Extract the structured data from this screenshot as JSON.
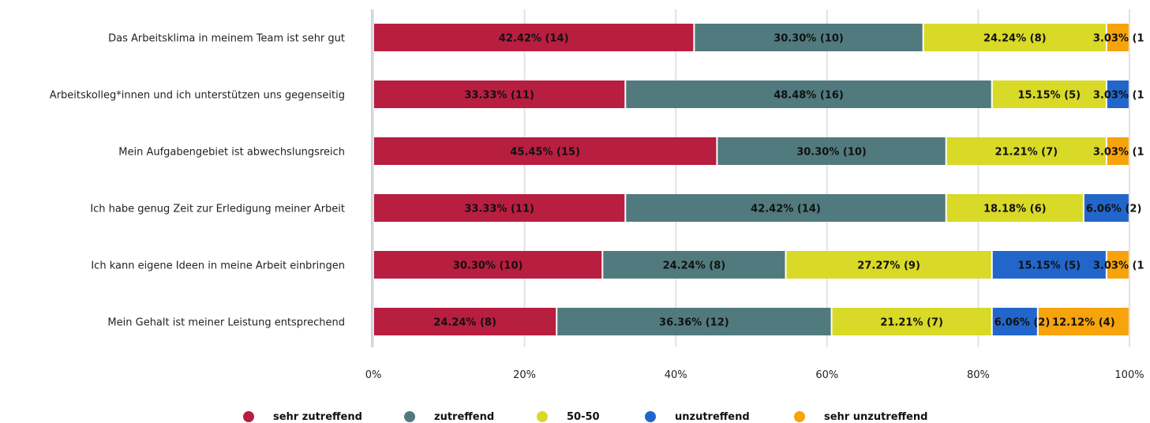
{
  "chart_data": {
    "type": "bar",
    "orientation": "horizontal",
    "stacked": "percent",
    "categories": [
      "Das Arbeitsklima in meinem Team ist sehr gut",
      "Arbeitskolleg*innen und ich unterstützen uns gegenseitig",
      "Mein Aufgabengebiet ist abwechslungsreich",
      "Ich habe genug Zeit zur Erledigung meiner Arbeit",
      "Ich kann eigene Ideen in meine Arbeit einbringen",
      "Mein Gehalt ist meiner Leistung entsprechend"
    ],
    "series": [
      {
        "name": "sehr zutreffend",
        "color": "#B81E40",
        "values": [
          42.42,
          33.33,
          45.45,
          33.33,
          30.3,
          24.24
        ],
        "labels": [
          "42.42% (14)",
          "33.33% (11)",
          "45.45% (15)",
          "33.33% (11)",
          "30.30% (10)",
          "24.24% (8)"
        ]
      },
      {
        "name": "zutreffend",
        "color": "#517A7E",
        "values": [
          30.3,
          48.48,
          30.3,
          42.42,
          24.24,
          36.36
        ],
        "labels": [
          "30.30% (10)",
          "48.48% (16)",
          "30.30% (10)",
          "42.42% (14)",
          "24.24% (8)",
          "36.36% (12)"
        ]
      },
      {
        "name": "50-50",
        "color": "#D9D927",
        "values": [
          24.24,
          15.15,
          21.21,
          18.18,
          27.27,
          21.21
        ],
        "labels": [
          "24.24% (8)",
          "15.15% (5)",
          "21.21% (7)",
          "18.18% (6)",
          "27.27% (9)",
          "21.21% (7)"
        ]
      },
      {
        "name": "unzutreffend",
        "color": "#2266CC",
        "values": [
          0,
          3.03,
          0,
          6.06,
          15.15,
          6.06
        ],
        "labels": [
          "",
          "3.03% (1",
          "",
          "6.06% (2)",
          "15.15% (5)",
          "6.06% (2)"
        ]
      },
      {
        "name": "sehr unzutreffend",
        "color": "#F7A30C",
        "values": [
          3.03,
          0,
          3.03,
          0,
          3.03,
          12.12
        ],
        "labels": [
          "3.03% (1",
          "",
          "3.03% (1",
          "",
          "3.03% (1",
          "12.12% (4)"
        ]
      }
    ],
    "xlim": [
      0,
      100
    ],
    "xticks": [
      "0%",
      "20%",
      "40%",
      "60%",
      "80%",
      "100%"
    ],
    "grid": true,
    "legend": "bottom"
  }
}
